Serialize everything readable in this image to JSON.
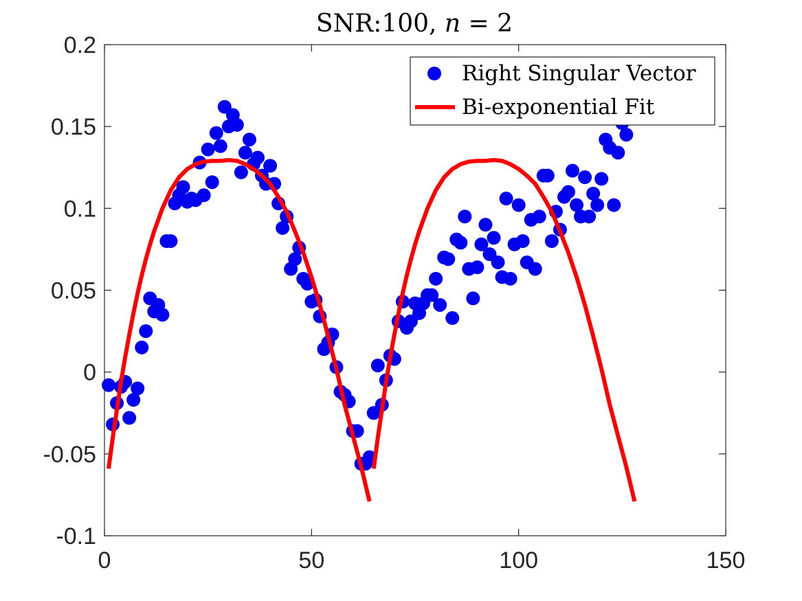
{
  "chart_data": {
    "type": "scatter",
    "title": "SNR:100, n = 2",
    "title_parts": {
      "prefix": "SNR:100, ",
      "var": "n",
      "op": " = ",
      "val": "2"
    },
    "xlim": [
      0,
      150
    ],
    "ylim": [
      -0.1,
      0.2
    ],
    "x_ticks": [
      0,
      50,
      100,
      150
    ],
    "x_tick_labels": [
      "0",
      "50",
      "100",
      "150"
    ],
    "y_ticks": [
      -0.1,
      -0.05,
      0,
      0.05,
      0.1,
      0.15,
      0.2
    ],
    "y_tick_labels": [
      "-0.1",
      "-0.05",
      "0",
      "0.05",
      "0.1",
      "0.15",
      "0.2"
    ],
    "legend_position": "top-right",
    "series": [
      {
        "name": "Right Singular Vector",
        "kind": "scatter",
        "color": "#0000ee",
        "points": [
          [
            1,
            -0.008
          ],
          [
            2,
            -0.032
          ],
          [
            3,
            -0.019
          ],
          [
            4,
            -0.009
          ],
          [
            5,
            -0.006
          ],
          [
            6,
            -0.028
          ],
          [
            7,
            -0.017
          ],
          [
            8,
            -0.01
          ],
          [
            9,
            0.015
          ],
          [
            10,
            0.025
          ],
          [
            11,
            0.045
          ],
          [
            12,
            0.037
          ],
          [
            13,
            0.041
          ],
          [
            14,
            0.035
          ],
          [
            15,
            0.08
          ],
          [
            16,
            0.08
          ],
          [
            17,
            0.103
          ],
          [
            18,
            0.108
          ],
          [
            19,
            0.113
          ],
          [
            20,
            0.104
          ],
          [
            21,
            0.106
          ],
          [
            22,
            0.105
          ],
          [
            23,
            0.128
          ],
          [
            24,
            0.108
          ],
          [
            25,
            0.136
          ],
          [
            26,
            0.116
          ],
          [
            27,
            0.146
          ],
          [
            28,
            0.138
          ],
          [
            29,
            0.162
          ],
          [
            30,
            0.15
          ],
          [
            31,
            0.157
          ],
          [
            32,
            0.151
          ],
          [
            33,
            0.122
          ],
          [
            34,
            0.134
          ],
          [
            35,
            0.142
          ],
          [
            36,
            0.127
          ],
          [
            37,
            0.131
          ],
          [
            38,
            0.12
          ],
          [
            39,
            0.115
          ],
          [
            40,
            0.126
          ],
          [
            41,
            0.115
          ],
          [
            42,
            0.103
          ],
          [
            43,
            0.088
          ],
          [
            44,
            0.095
          ],
          [
            45,
            0.063
          ],
          [
            46,
            0.069
          ],
          [
            47,
            0.076
          ],
          [
            48,
            0.057
          ],
          [
            49,
            0.054
          ],
          [
            50,
            0.043
          ],
          [
            51,
            0.044
          ],
          [
            52,
            0.034
          ],
          [
            53,
            0.014
          ],
          [
            54,
            0.018
          ],
          [
            55,
            0.023
          ],
          [
            56,
            0.003
          ],
          [
            57,
            -0.012
          ],
          [
            58,
            -0.014
          ],
          [
            59,
            -0.018
          ],
          [
            60,
            -0.036
          ],
          [
            61,
            -0.036
          ],
          [
            62,
            -0.056
          ],
          [
            63,
            -0.056
          ],
          [
            64,
            -0.052
          ],
          [
            65,
            -0.025
          ],
          [
            66,
            0.004
          ],
          [
            67,
            -0.02
          ],
          [
            68,
            -0.005
          ],
          [
            69,
            0.01
          ],
          [
            70,
            0.008
          ],
          [
            71,
            0.031
          ],
          [
            72,
            0.043
          ],
          [
            73,
            0.027
          ],
          [
            74,
            0.031
          ],
          [
            75,
            0.042
          ],
          [
            76,
            0.036
          ],
          [
            77,
            0.042
          ],
          [
            78,
            0.047
          ],
          [
            79,
            0.047
          ],
          [
            80,
            0.057
          ],
          [
            81,
            0.041
          ],
          [
            82,
            0.07
          ],
          [
            83,
            0.069
          ],
          [
            84,
            0.033
          ],
          [
            85,
            0.081
          ],
          [
            86,
            0.079
          ],
          [
            87,
            0.095
          ],
          [
            88,
            0.063
          ],
          [
            89,
            0.045
          ],
          [
            90,
            0.064
          ],
          [
            91,
            0.078
          ],
          [
            92,
            0.09
          ],
          [
            93,
            0.072
          ],
          [
            94,
            0.082
          ],
          [
            95,
            0.067
          ],
          [
            96,
            0.058
          ],
          [
            97,
            0.106
          ],
          [
            98,
            0.057
          ],
          [
            99,
            0.078
          ],
          [
            100,
            0.102
          ],
          [
            101,
            0.08
          ],
          [
            102,
            0.067
          ],
          [
            103,
            0.093
          ],
          [
            104,
            0.063
          ],
          [
            105,
            0.095
          ],
          [
            106,
            0.12
          ],
          [
            107,
            0.12
          ],
          [
            108,
            0.08
          ],
          [
            109,
            0.098
          ],
          [
            110,
            0.087
          ],
          [
            111,
            0.107
          ],
          [
            112,
            0.11
          ],
          [
            113,
            0.123
          ],
          [
            114,
            0.102
          ],
          [
            115,
            0.095
          ],
          [
            116,
            0.119
          ],
          [
            117,
            0.095
          ],
          [
            118,
            0.109
          ],
          [
            119,
            0.102
          ],
          [
            120,
            0.118
          ],
          [
            121,
            0.142
          ],
          [
            122,
            0.137
          ],
          [
            123,
            0.102
          ],
          [
            124,
            0.134
          ],
          [
            125,
            0.152
          ],
          [
            126,
            0.145
          ]
        ]
      },
      {
        "name": "Bi-exponential Fit",
        "kind": "line",
        "color": "#ff0000",
        "segments": [
          [
            [
              1,
              -0.059
            ],
            [
              2,
              -0.04
            ],
            [
              3,
              -0.023
            ],
            [
              4,
              -0.006
            ],
            [
              5,
              0.009
            ],
            [
              6,
              0.023
            ],
            [
              7,
              0.036
            ],
            [
              8,
              0.048
            ],
            [
              9,
              0.059
            ],
            [
              10,
              0.069
            ],
            [
              11,
              0.078
            ],
            [
              12,
              0.086
            ],
            [
              14,
              0.1
            ],
            [
              16,
              0.111
            ],
            [
              18,
              0.119
            ],
            [
              20,
              0.124
            ],
            [
              22,
              0.127
            ],
            [
              24,
              0.1285
            ],
            [
              26,
              0.129
            ],
            [
              28,
              0.129
            ],
            [
              30,
              0.1295
            ],
            [
              32,
              0.129
            ],
            [
              34,
              0.127
            ],
            [
              36,
              0.124
            ],
            [
              38,
              0.12
            ],
            [
              40,
              0.115
            ],
            [
              42,
              0.107
            ],
            [
              44,
              0.098
            ],
            [
              46,
              0.086
            ],
            [
              48,
              0.073
            ],
            [
              50,
              0.058
            ],
            [
              52,
              0.041
            ],
            [
              54,
              0.022
            ],
            [
              56,
              0.002
            ],
            [
              58,
              -0.02
            ],
            [
              60,
              -0.039
            ],
            [
              62,
              -0.058
            ],
            [
              64,
              -0.079
            ]
          ],
          [
            [
              65,
              -0.059
            ],
            [
              66,
              -0.04
            ],
            [
              67,
              -0.023
            ],
            [
              68,
              -0.006
            ],
            [
              69,
              0.009
            ],
            [
              70,
              0.023
            ],
            [
              71,
              0.036
            ],
            [
              72,
              0.048
            ],
            [
              73,
              0.059
            ],
            [
              74,
              0.069
            ],
            [
              75,
              0.078
            ],
            [
              76,
              0.086
            ],
            [
              78,
              0.1
            ],
            [
              80,
              0.111
            ],
            [
              82,
              0.119
            ],
            [
              84,
              0.124
            ],
            [
              86,
              0.127
            ],
            [
              88,
              0.1285
            ],
            [
              90,
              0.129
            ],
            [
              92,
              0.129
            ],
            [
              94,
              0.1295
            ],
            [
              96,
              0.129
            ],
            [
              98,
              0.127
            ],
            [
              100,
              0.124
            ],
            [
              102,
              0.12
            ],
            [
              104,
              0.115
            ],
            [
              106,
              0.107
            ],
            [
              108,
              0.098
            ],
            [
              110,
              0.086
            ],
            [
              112,
              0.073
            ],
            [
              114,
              0.058
            ],
            [
              116,
              0.041
            ],
            [
              118,
              0.022
            ],
            [
              120,
              0.002
            ],
            [
              122,
              -0.02
            ],
            [
              124,
              -0.039
            ],
            [
              126,
              -0.058
            ],
            [
              128,
              -0.079
            ]
          ]
        ]
      }
    ]
  }
}
